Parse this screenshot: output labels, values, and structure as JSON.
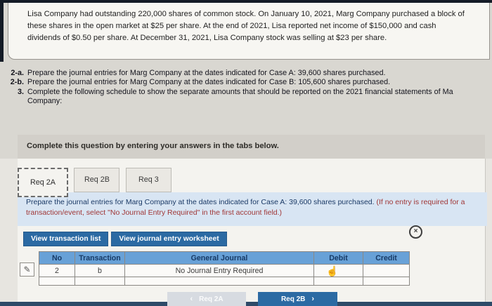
{
  "question": {
    "text": "Lisa Company had outstanding 220,000 shares of common stock. On January 10, 2021, Marg Company purchased a block of these shares in the open market at $25 per share. At the end of 2021, Lisa reported net income of $150,000 and cash dividends of $0.50 per share. At December 31, 2021, Lisa Company stock was selling at $23 per share."
  },
  "requirements": [
    {
      "label": "2-a.",
      "text": "Prepare the journal entries for Marg Company at the dates indicated for Case A: 39,600 shares purchased."
    },
    {
      "label": "2-b.",
      "text": "Prepare the journal entries for Marg Company at the dates indicated for Case B: 105,600 shares purchased."
    },
    {
      "label": "3.",
      "text": "Complete the following schedule to show the separate amounts that should be reported on the 2021 financial statements of Ma",
      "cont": "Company:"
    }
  ],
  "banner": {
    "text": "Complete this question by entering your answers in the tabs below."
  },
  "tabs": [
    {
      "label": "Req 2A",
      "active": true
    },
    {
      "label": "Req 2B",
      "active": false
    },
    {
      "label": "Req 3",
      "active": false
    }
  ],
  "instruction": {
    "main": "Prepare the journal entries for Marg Company at the dates indicated for Case A: 39,600 shares purchased. ",
    "note": "(If no entry is required for a transaction/event, select \"No Journal Entry Required\" in the first account field.)"
  },
  "toolbar": {
    "view_transaction_list": "View transaction list",
    "view_journal_entry_worksheet": "View journal entry worksheet"
  },
  "table": {
    "headers": [
      "No",
      "Transaction",
      "General Journal",
      "Debit",
      "Credit"
    ],
    "rows": [
      {
        "no": "2",
        "transaction": "b",
        "general_journal": "No Journal Entry Required",
        "debit": "",
        "credit": ""
      },
      {
        "no": "",
        "transaction": "",
        "general_journal": "",
        "debit": "",
        "credit": ""
      }
    ]
  },
  "nav": {
    "prev_label": "Req 2A",
    "next_label": "Req 2B"
  },
  "icons": {
    "edit_pencil": "✎",
    "hand_cursor": "☝",
    "close_x": "×",
    "chevron_left": "‹",
    "chevron_right": "›"
  },
  "colors": {
    "accent_blue": "#2b6aa3",
    "table_header_blue": "#68a1d7",
    "instruction_navy": "#1b3a66",
    "instruction_red": "#a03737",
    "panel_light_blue": "#d8e5f3",
    "banner_gray": "#d2cfc9",
    "bottom_strip_navy": "#2e4a68"
  }
}
